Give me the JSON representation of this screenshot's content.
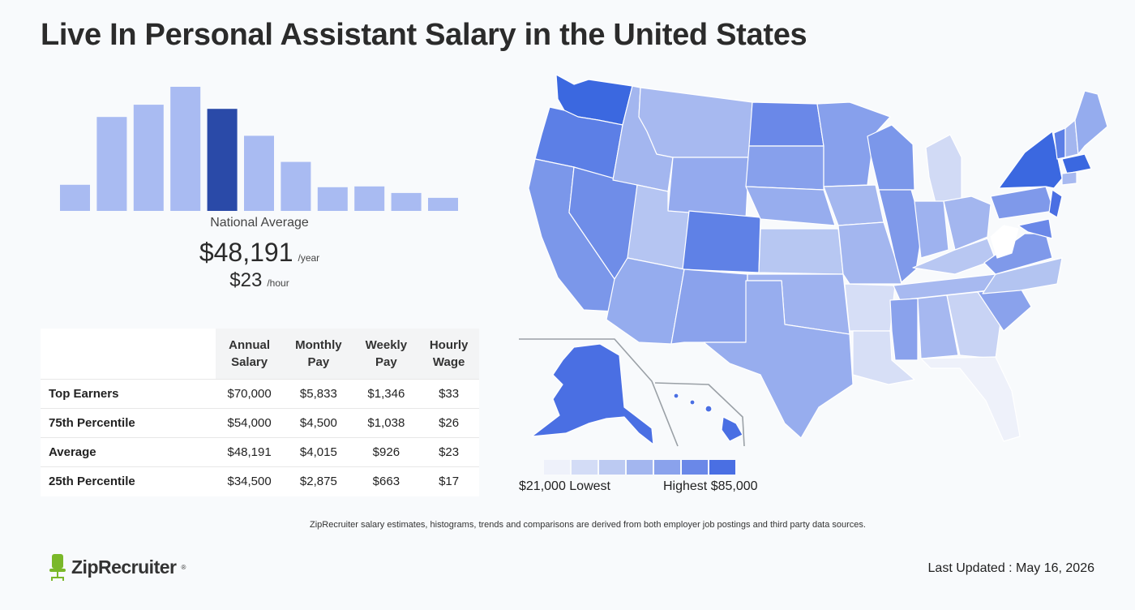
{
  "page": {
    "title": "Live In Personal Assistant Salary in the United States",
    "footnote": "ZipRecruiter salary estimates, histograms, trends and comparisons are derived from both employer job postings and third party data sources.",
    "last_updated": "Last Updated : May 16, 2026",
    "logo_text": "ZipRecruiter",
    "logo_mark": "®"
  },
  "national": {
    "label": "National Average",
    "yearly": "$48,191",
    "yearly_unit": "/year",
    "hourly": "$23",
    "hourly_unit": "/hour"
  },
  "table": {
    "headers": [
      [
        "Annual",
        "Salary"
      ],
      [
        "Monthly",
        "Pay"
      ],
      [
        "Weekly",
        "Pay"
      ],
      [
        "Hourly",
        "Wage"
      ]
    ],
    "rows": [
      {
        "label": "Top Earners",
        "annual": "$70,000",
        "monthly": "$5,833",
        "weekly": "$1,346",
        "hourly": "$33"
      },
      {
        "label": "75th Percentile",
        "annual": "$54,000",
        "monthly": "$4,500",
        "weekly": "$1,038",
        "hourly": "$26"
      },
      {
        "label": "Average",
        "annual": "$48,191",
        "monthly": "$4,015",
        "weekly": "$926",
        "hourly": "$23"
      },
      {
        "label": "25th Percentile",
        "annual": "$34,500",
        "monthly": "$2,875",
        "weekly": "$663",
        "hourly": "$17"
      }
    ]
  },
  "map": {
    "low_label": "$21,000 Lowest",
    "high_label": "Highest $85,000",
    "legend_colors": [
      "#eef1fa",
      "#d3dcf6",
      "#bccaf2",
      "#a3b6ef",
      "#8aa2ec",
      "#6a88e8",
      "#4a6fe3"
    ]
  },
  "colors": {
    "bar": "#a9bbf2",
    "bar_highlight": "#2a4aa8",
    "map_accent": "#3b68e0"
  },
  "chart_data": {
    "type": "bar",
    "description_values_relative_height": true,
    "values": [
      32,
      115,
      130,
      152,
      125,
      92,
      60,
      29,
      30,
      22,
      16
    ],
    "highlight_index": 4,
    "ylim": [
      0,
      152
    ]
  }
}
